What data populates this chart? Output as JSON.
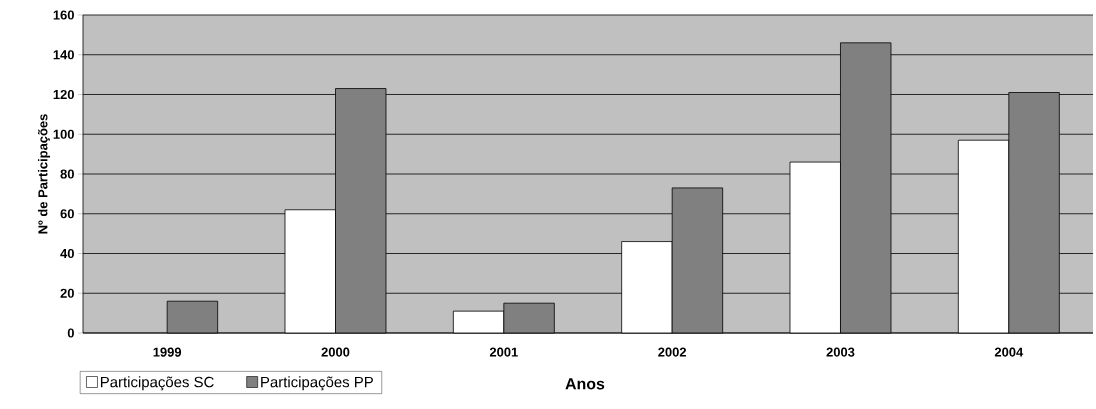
{
  "chart_data": {
    "type": "bar",
    "xlabel": "Anos",
    "ylabel": "Nº de Participações",
    "categories": [
      "1999",
      "2000",
      "2001",
      "2002",
      "2003",
      "2004"
    ],
    "series": [
      {
        "name": "Participações SC",
        "color": "#ffffff",
        "values": [
          null,
          62,
          11,
          46,
          86,
          97
        ]
      },
      {
        "name": "Participações PP",
        "color": "#808080",
        "values": [
          16,
          123,
          15,
          73,
          146,
          121
        ]
      }
    ],
    "ylim": [
      0,
      160
    ],
    "yticks": [
      0,
      20,
      40,
      60,
      80,
      100,
      120,
      140,
      160
    ],
    "grid": "y",
    "legend": "bottom"
  }
}
